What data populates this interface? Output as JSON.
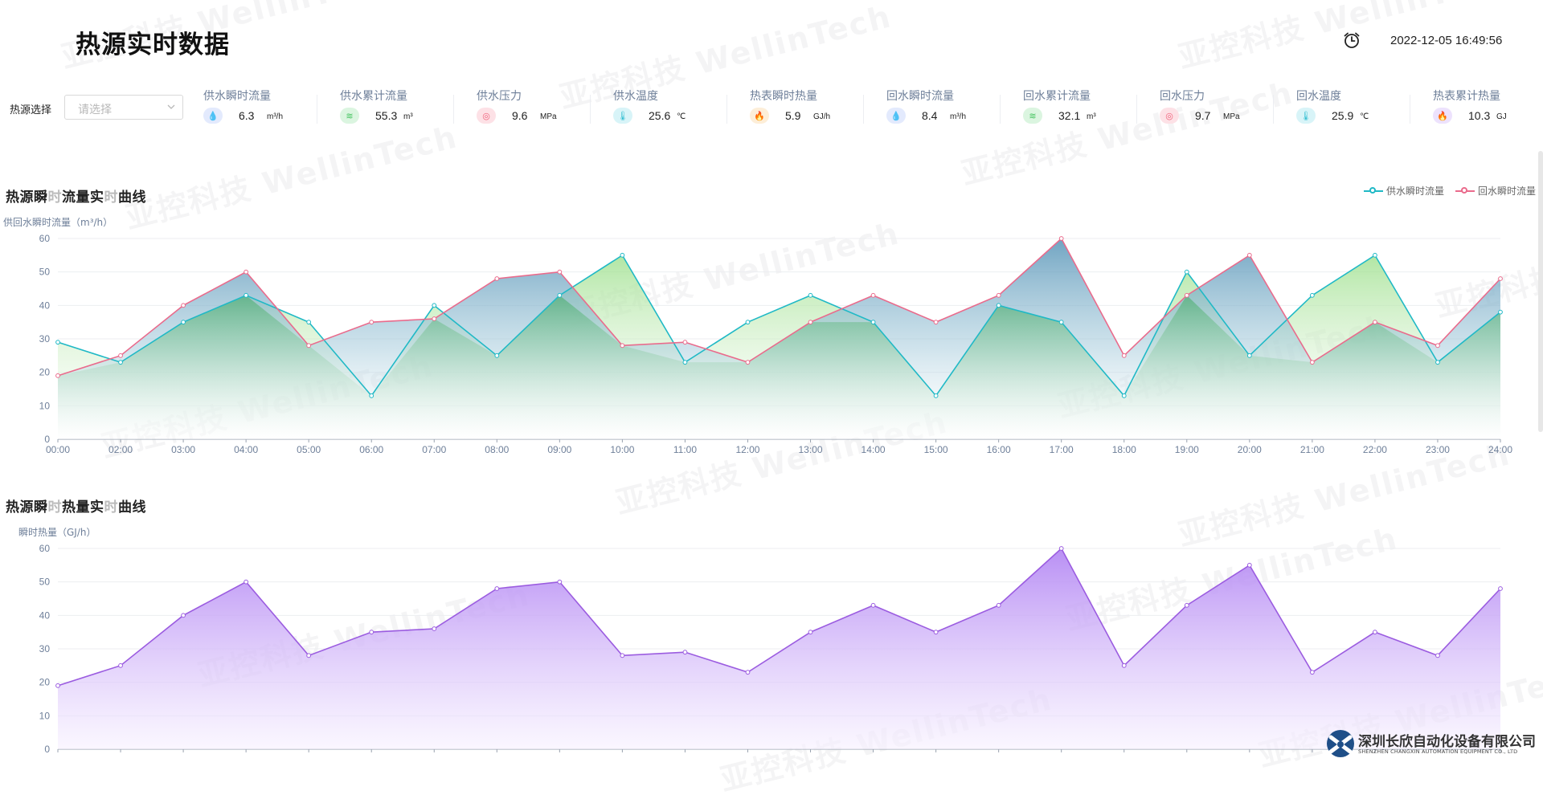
{
  "page": {
    "title": "热源实时数据",
    "datetime": "2022-12-05 16:49:56"
  },
  "watermark": "亚控科技 WellinTech",
  "selector": {
    "label": "热源选择",
    "placeholder": "请选择"
  },
  "metrics": [
    {
      "label": "供水瞬时流量",
      "value": "6.3",
      "unit": "m³/h",
      "icon": "water-drop-icon",
      "color": "#6b8cf0",
      "bg": "#e3eafd",
      "glyph": "💧"
    },
    {
      "label": "供水累计流量",
      "value": "55.3",
      "unit": "m³",
      "icon": "wave-icon",
      "color": "#41c25c",
      "bg": "#dbf5e0",
      "glyph": "≋"
    },
    {
      "label": "供水压力",
      "value": "9.6",
      "unit": "MPa",
      "icon": "gauge-icon",
      "color": "#f0607a",
      "bg": "#fde1e6",
      "glyph": "◎"
    },
    {
      "label": "供水温度",
      "value": "25.6",
      "unit": "℃",
      "icon": "thermometer-icon",
      "color": "#2bbcd0",
      "bg": "#d8f4f8",
      "glyph": "🌡"
    },
    {
      "label": "热表瞬时热量",
      "value": "5.9",
      "unit": "GJ/h",
      "icon": "flame-icon",
      "color": "#f6a23a",
      "bg": "#fdeed8",
      "glyph": "🔥"
    },
    {
      "label": "回水瞬时流量",
      "value": "8.4",
      "unit": "m³/h",
      "icon": "water-drop-icon",
      "color": "#6b8cf0",
      "bg": "#e3eafd",
      "glyph": "💧"
    },
    {
      "label": "回水累计流量",
      "value": "32.1",
      "unit": "m³",
      "icon": "wave-icon",
      "color": "#41c25c",
      "bg": "#dbf5e0",
      "glyph": "≋"
    },
    {
      "label": "回水压力",
      "value": "9.7",
      "unit": "MPa",
      "icon": "gauge-icon",
      "color": "#f0607a",
      "bg": "#fde1e6",
      "glyph": "◎"
    },
    {
      "label": "回水温度",
      "value": "25.9",
      "unit": "℃",
      "icon": "thermometer-icon",
      "color": "#2bbcd0",
      "bg": "#d8f4f8",
      "glyph": "🌡"
    },
    {
      "label": "热表累计热量",
      "value": "10.3",
      "unit": "GJ",
      "icon": "flame-icon",
      "color": "#9b5cf0",
      "bg": "#ede2fd",
      "glyph": "🔥"
    }
  ],
  "flow_section": {
    "title_parts": [
      "热源瞬",
      "时",
      "流量实",
      "时",
      "曲线"
    ]
  },
  "heat_section": {
    "title_parts": [
      "热源瞬",
      "时",
      "热量实",
      "时",
      "曲线"
    ]
  },
  "chart_data": [
    {
      "type": "area",
      "yAxisTitle": "供回水瞬时流量（m³/h）",
      "categories": [
        "00:00",
        "02:00",
        "03:00",
        "04:00",
        "05:00",
        "06:00",
        "07:00",
        "08:00",
        "09:00",
        "10:00",
        "11:00",
        "12:00",
        "13:00",
        "14:00",
        "15:00",
        "16:00",
        "17:00",
        "18:00",
        "19:00",
        "20:00",
        "21:00",
        "22:00",
        "23:00",
        "24:00"
      ],
      "ylim": [
        0,
        60
      ],
      "yticks": [
        0,
        10,
        20,
        30,
        40,
        50,
        60
      ],
      "grid": true,
      "legend_position": "top-right",
      "series": [
        {
          "name": "供水瞬时流量",
          "color": "#20b9c6",
          "values": [
            29,
            23,
            35,
            43,
            35,
            13,
            40,
            25,
            43,
            55,
            23,
            35,
            43,
            35,
            13,
            40,
            35,
            13,
            50,
            25,
            43,
            55,
            23,
            38
          ]
        },
        {
          "name": "回水瞬时流量",
          "color": "#ea6b8c",
          "values": [
            19,
            25,
            40,
            50,
            28,
            35,
            36,
            48,
            50,
            28,
            29,
            23,
            35,
            43,
            35,
            43,
            60,
            25,
            43,
            55,
            23,
            35,
            28,
            48
          ]
        }
      ]
    },
    {
      "type": "area",
      "yAxisTitle": "瞬时热量（GJ/h）",
      "categories": [
        "00:00",
        "02:00",
        "03:00",
        "04:00",
        "05:00",
        "06:00",
        "07:00",
        "08:00",
        "09:00",
        "10:00",
        "11:00",
        "12:00",
        "13:00",
        "14:00",
        "15:00",
        "16:00",
        "17:00",
        "18:00",
        "19:00",
        "20:00",
        "21:00",
        "22:00",
        "23:00",
        "24:00"
      ],
      "ylim": [
        0,
        60
      ],
      "yticks": [
        0,
        10,
        20,
        30,
        40,
        50,
        60
      ],
      "grid": true,
      "series": [
        {
          "name": "瞬时热量",
          "color": "#9b5ce0",
          "values": [
            19,
            25,
            40,
            50,
            28,
            35,
            36,
            48,
            50,
            28,
            29,
            23,
            35,
            43,
            35,
            43,
            60,
            25,
            43,
            55,
            23,
            35,
            28,
            48
          ]
        }
      ]
    }
  ],
  "brand": {
    "name": "深圳长欣自动化设备有限公司",
    "en": "SHENZHEN CHANGXIN AUTOMATION EQUIPMENT CO., LTD"
  }
}
